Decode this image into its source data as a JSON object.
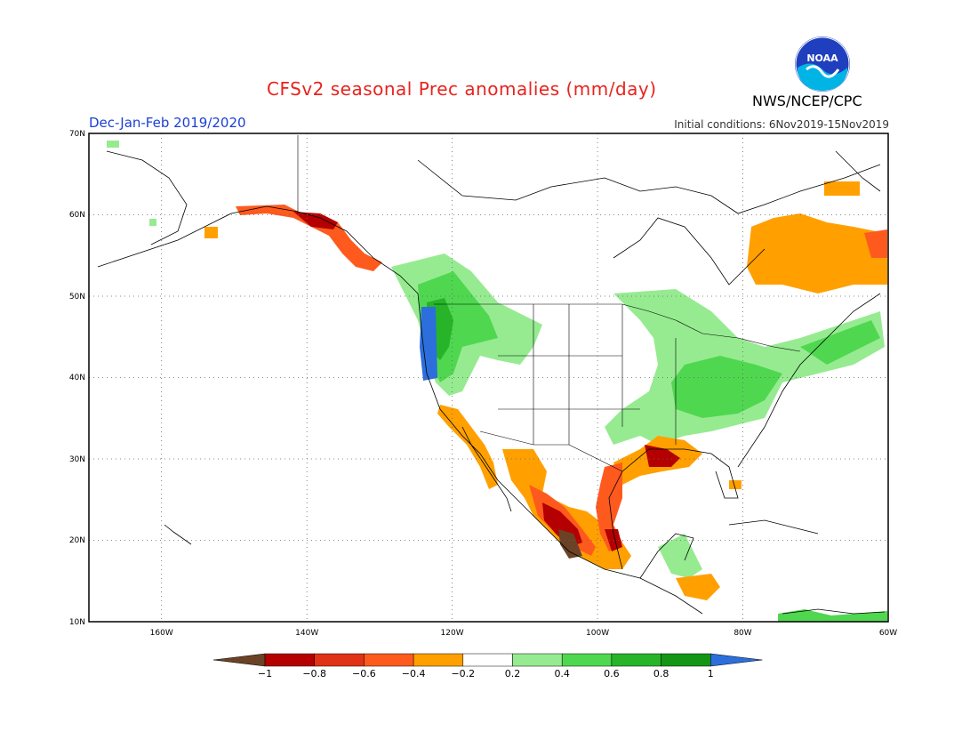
{
  "title": "CFSv2 seasonal Prec anomalies (mm/day)",
  "agency": "NWS/NCEP/CPC",
  "logo_text": "NOAA",
  "period": "Dec-Jan-Feb 2019/2020",
  "initial_conditions": "Initial conditions: 6Nov2019-15Nov2019",
  "lat_ticks": [
    "70N",
    "60N",
    "50N",
    "40N",
    "30N",
    "20N",
    "10N"
  ],
  "lon_ticks": [
    "160W",
    "140W",
    "120W",
    "100W",
    "80W",
    "60W"
  ],
  "colorbar": {
    "labels": [
      "−1",
      "−0.8",
      "−0.6",
      "−0.4",
      "−0.2",
      "0.2",
      "0.4",
      "0.6",
      "0.8",
      "1"
    ],
    "colors": [
      "#6b4226",
      "#b40000",
      "#e03214",
      "#ff5a1e",
      "#ffa000",
      "#ffffff",
      "#96eb91",
      "#50d750",
      "#28b428",
      "#149614",
      "#2c6fdc"
    ]
  },
  "map_extent": {
    "lon": [
      -170,
      -60
    ],
    "lat": [
      10,
      70
    ]
  }
}
